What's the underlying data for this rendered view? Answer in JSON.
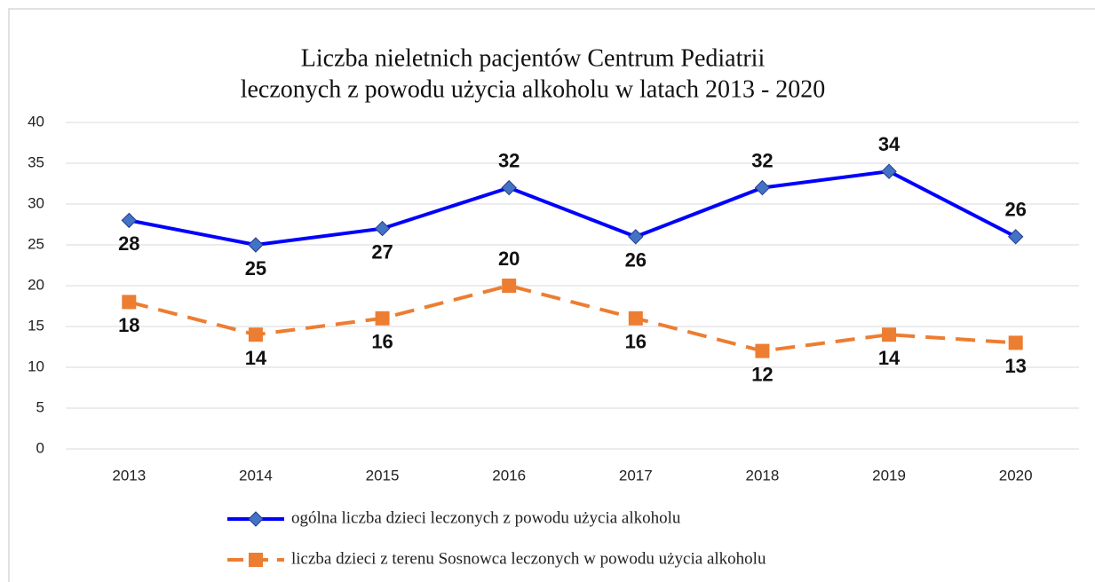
{
  "chart_data": {
    "type": "line",
    "title": [
      "Liczba nieletnich pacjentów Centrum Pediatrii",
      "leczonych z powodu użycia alkoholu w latach 2013 - 2020"
    ],
    "categories": [
      "2013",
      "2014",
      "2015",
      "2016",
      "2017",
      "2018",
      "2019",
      "2020"
    ],
    "series": [
      {
        "name": "ogólna liczba dzieci leczonych z powodu użycia alkoholu",
        "color": "#0000ff",
        "marker_color": "#4472c4",
        "marker": "diamond",
        "dashed": false,
        "values": [
          28,
          25,
          27,
          32,
          26,
          32,
          34,
          26
        ]
      },
      {
        "name": "liczba dzieci z terenu Sosnowca leczonych w powodu użycia alkoholu",
        "color": "#ed7d31",
        "marker_color": "#ed7d31",
        "marker": "square",
        "dashed": true,
        "values": [
          18,
          14,
          16,
          20,
          16,
          12,
          14,
          13
        ]
      }
    ],
    "ylim": [
      0,
      40
    ],
    "yticks": [
      0,
      5,
      10,
      15,
      20,
      25,
      30,
      35,
      40
    ],
    "grid": true,
    "legend": "bottom"
  }
}
